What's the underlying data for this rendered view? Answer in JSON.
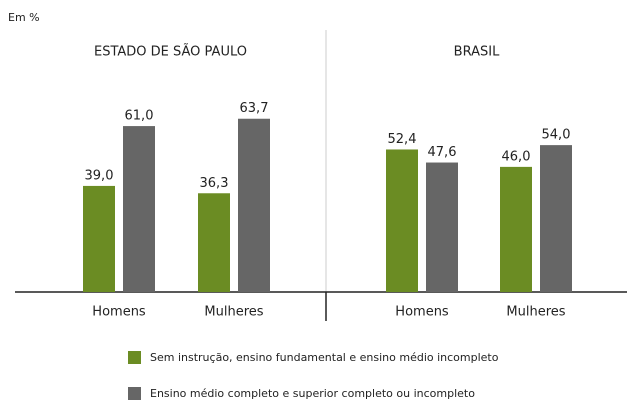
{
  "chart_data": {
    "type": "bar",
    "subtitle": "Em %",
    "panels": [
      {
        "title": "ESTADO DE SÃO PAULO",
        "categories": [
          "Homens",
          "Mulheres"
        ]
      },
      {
        "title": "BRASIL",
        "categories": [
          "Homens",
          "Mulheres"
        ]
      }
    ],
    "series": [
      {
        "name": "Sem instrução, ensino fundamental e ensino médio incompleto",
        "color": "#6b8c23",
        "values": [
          39.0,
          36.3,
          52.4,
          46.0
        ],
        "value_labels": [
          "39,0",
          "36,3",
          "52,4",
          "46,0"
        ]
      },
      {
        "name": "Ensino médio completo e superior completo ou incompleto",
        "color": "#666666",
        "values": [
          61.0,
          63.7,
          47.6,
          54.0
        ],
        "value_labels": [
          "61,0",
          "63,7",
          "47,6",
          "54,0"
        ]
      }
    ]
  }
}
